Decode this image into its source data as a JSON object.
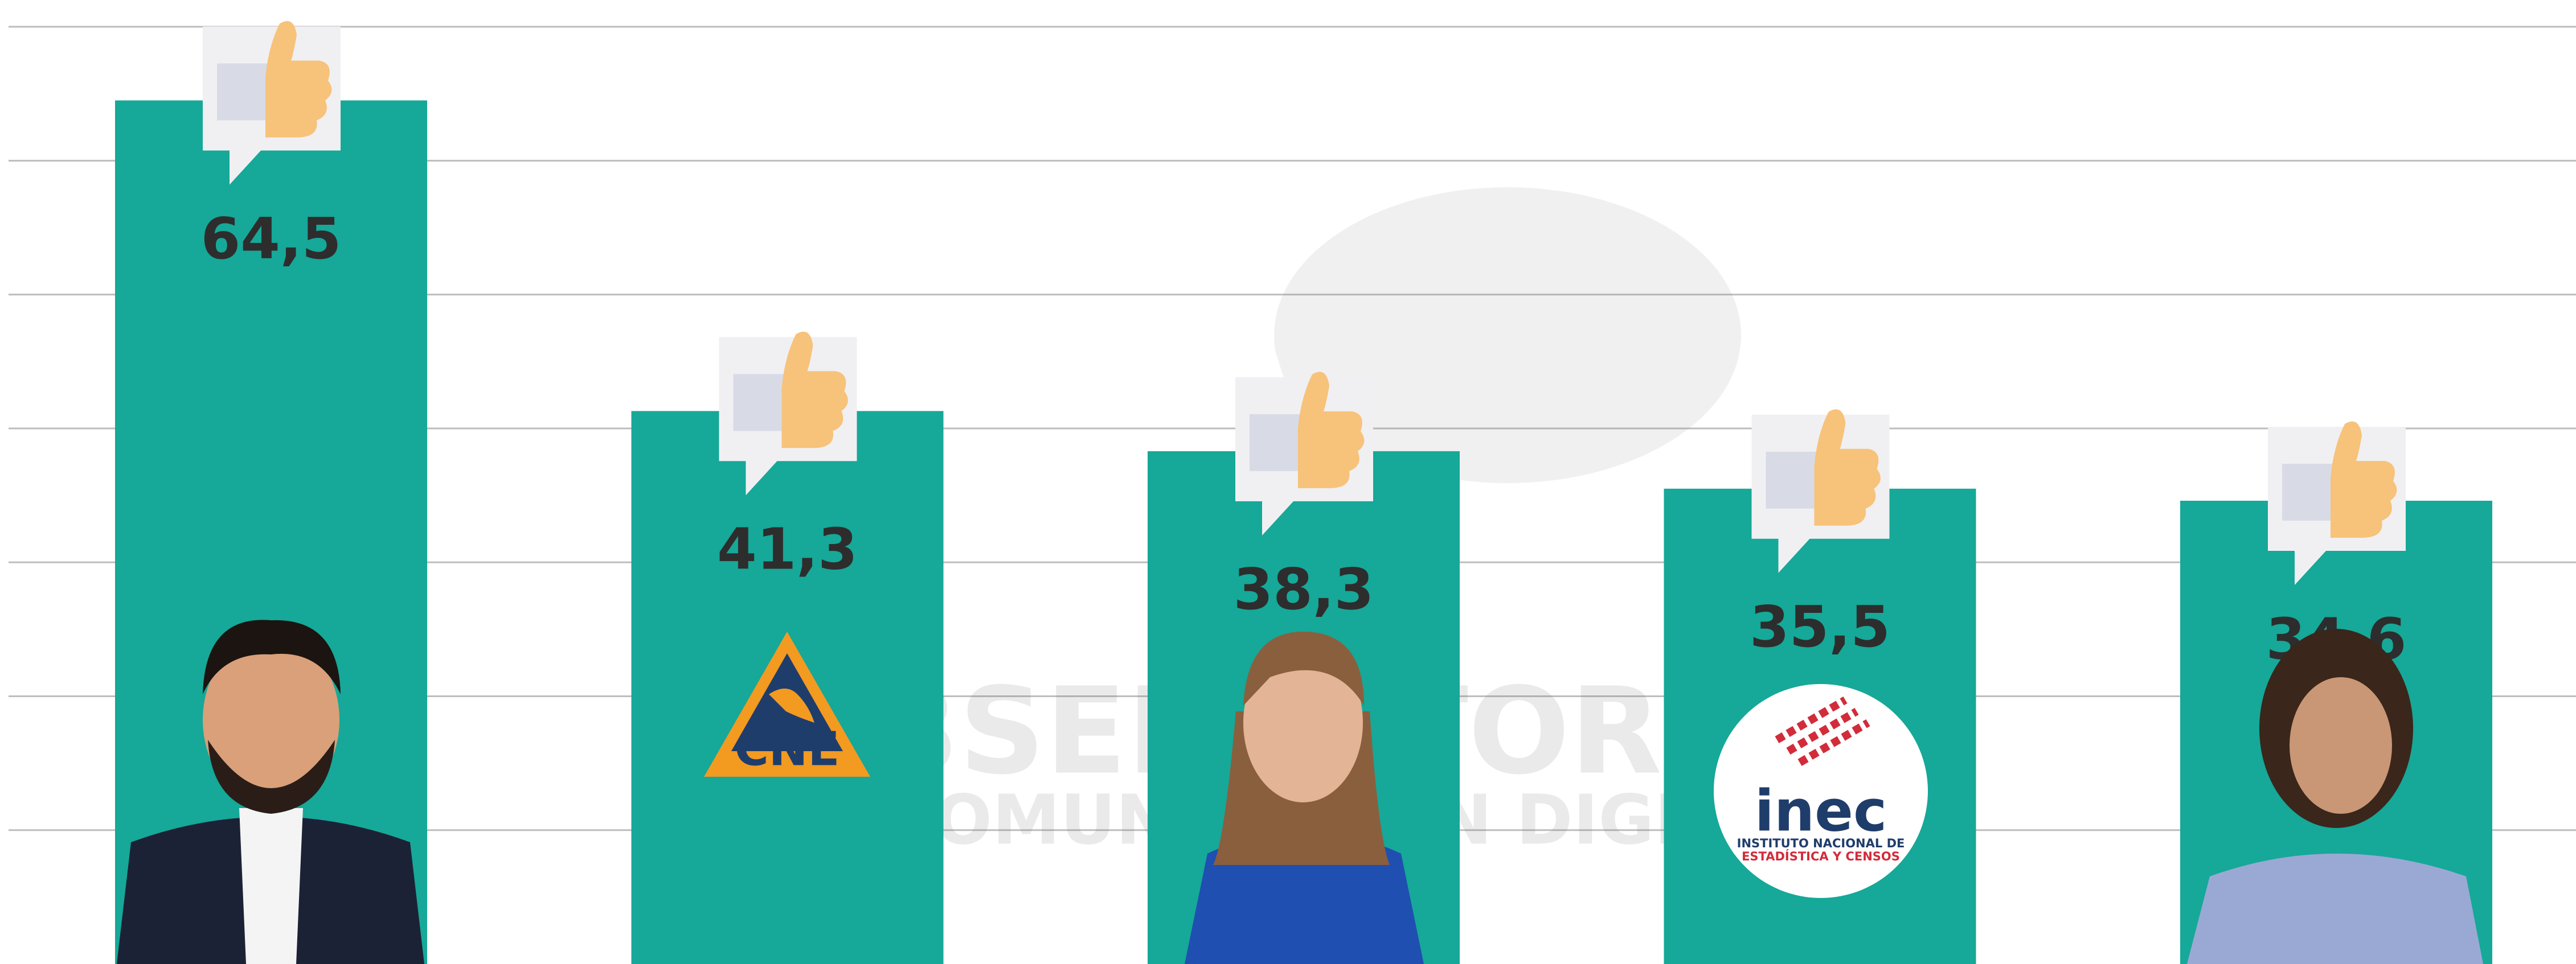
{
  "chart_data": {
    "type": "bar",
    "categories": [
      null,
      null,
      null,
      null,
      null
    ],
    "values": [
      64.5,
      41.3,
      38.3,
      35.5,
      34.6
    ],
    "value_labels": [
      "64,5",
      "41,3",
      "38,3",
      "35,5",
      "34,6"
    ],
    "color": "#16a898",
    "ylim": [
      0,
      72
    ],
    "yticks": [
      10,
      20,
      30,
      40,
      50,
      60,
      70
    ],
    "grid": true
  },
  "watermark": {
    "line1": "OBSERVATORIO",
    "line2": "DE COMUNICACIÓN DIGITAL"
  },
  "cne_logo": "CNE",
  "inec_logo": {
    "name": "inec",
    "subtitle1": "INSTITUTO NACIONAL DE",
    "subtitle2": "ESTADÍSTICA Y CENSOS"
  }
}
